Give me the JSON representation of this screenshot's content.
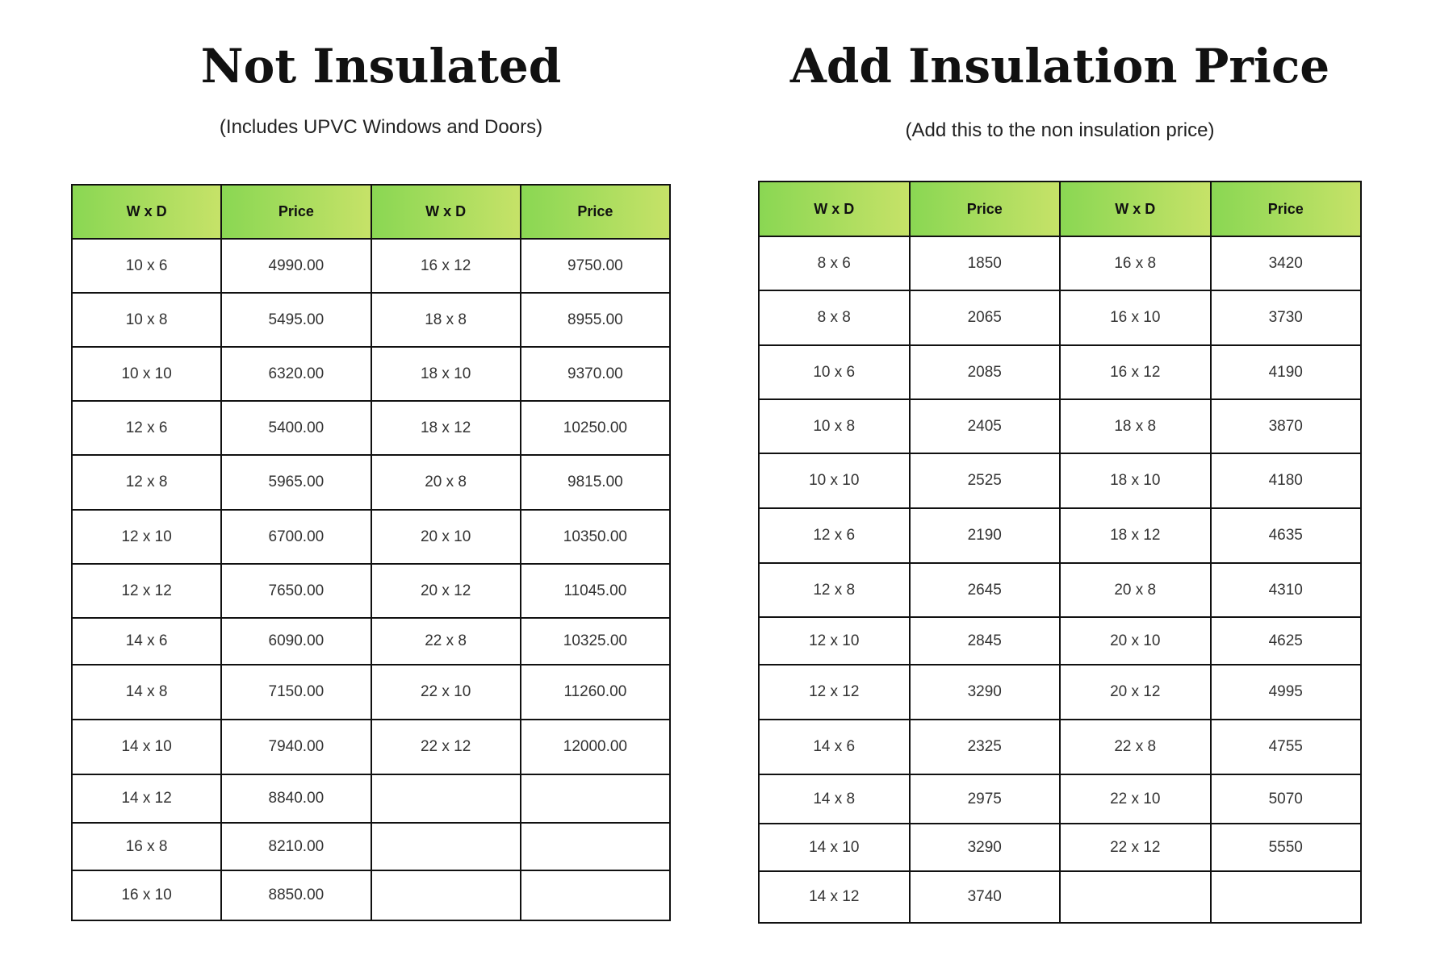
{
  "left": {
    "title": "Not Insulated",
    "subtitle": "(Includes UPVC Windows and Doors)",
    "headers": [
      "W x D",
      "Price",
      "W x D",
      "Price"
    ],
    "rows": [
      [
        "10 x 6",
        "4990.00",
        "16 x 12",
        "9750.00"
      ],
      [
        "10 x 8",
        "5495.00",
        "18 x 8",
        "8955.00"
      ],
      [
        "10 x 10",
        "6320.00",
        "18 x 10",
        "9370.00"
      ],
      [
        "12 x 6",
        "5400.00",
        "18 x 12",
        "10250.00"
      ],
      [
        "12 x 8",
        "5965.00",
        "20 x 8",
        "9815.00"
      ],
      [
        "12 x 10",
        "6700.00",
        "20 x 10",
        "10350.00"
      ],
      [
        "12 x 12",
        "7650.00",
        "20 x 12",
        "11045.00"
      ],
      [
        "14 x 6",
        "6090.00",
        "22 x 8",
        "10325.00"
      ],
      [
        "14 x 8",
        "7150.00",
        "22 x 10",
        "11260.00"
      ],
      [
        "14 x 10",
        "7940.00",
        "22 x 12",
        "12000.00"
      ],
      [
        "14 x 12",
        "8840.00",
        "",
        ""
      ],
      [
        "16 x 8",
        "8210.00",
        "",
        ""
      ],
      [
        "16 x 10",
        "8850.00",
        "",
        ""
      ]
    ]
  },
  "right": {
    "title": "Add Insulation Price",
    "subtitle": "(Add this to the non insulation price)",
    "headers": [
      "W x D",
      "Price",
      "W x D",
      "Price"
    ],
    "rows": [
      [
        "8 x 6",
        "1850",
        "16 x 8",
        "3420"
      ],
      [
        "8 x 8",
        "2065",
        "16 x 10",
        "3730"
      ],
      [
        "10 x 6",
        "2085",
        "16 x 12",
        "4190"
      ],
      [
        "10 x 8",
        "2405",
        "18 x 8",
        "3870"
      ],
      [
        "10 x 10",
        "2525",
        "18 x 10",
        "4180"
      ],
      [
        "12 x 6",
        "2190",
        "18 x 12",
        "4635"
      ],
      [
        "12 x 8",
        "2645",
        "20 x 8",
        "4310"
      ],
      [
        "12 x 10",
        "2845",
        "20 x 10",
        "4625"
      ],
      [
        "12 x 12",
        "3290",
        "20 x 12",
        "4995"
      ],
      [
        "14 x 6",
        "2325",
        "22 x 8",
        "4755"
      ],
      [
        "14 x 8",
        "2975",
        "22 x 10",
        "5070"
      ],
      [
        "14 x 10",
        "3290",
        "22 x 12",
        "5550"
      ],
      [
        "14 x 12",
        "3740",
        "",
        ""
      ]
    ]
  },
  "colors": {
    "header_gradient_start": "#8ad753",
    "header_gradient_end": "#c6e268",
    "border": "#111111"
  }
}
